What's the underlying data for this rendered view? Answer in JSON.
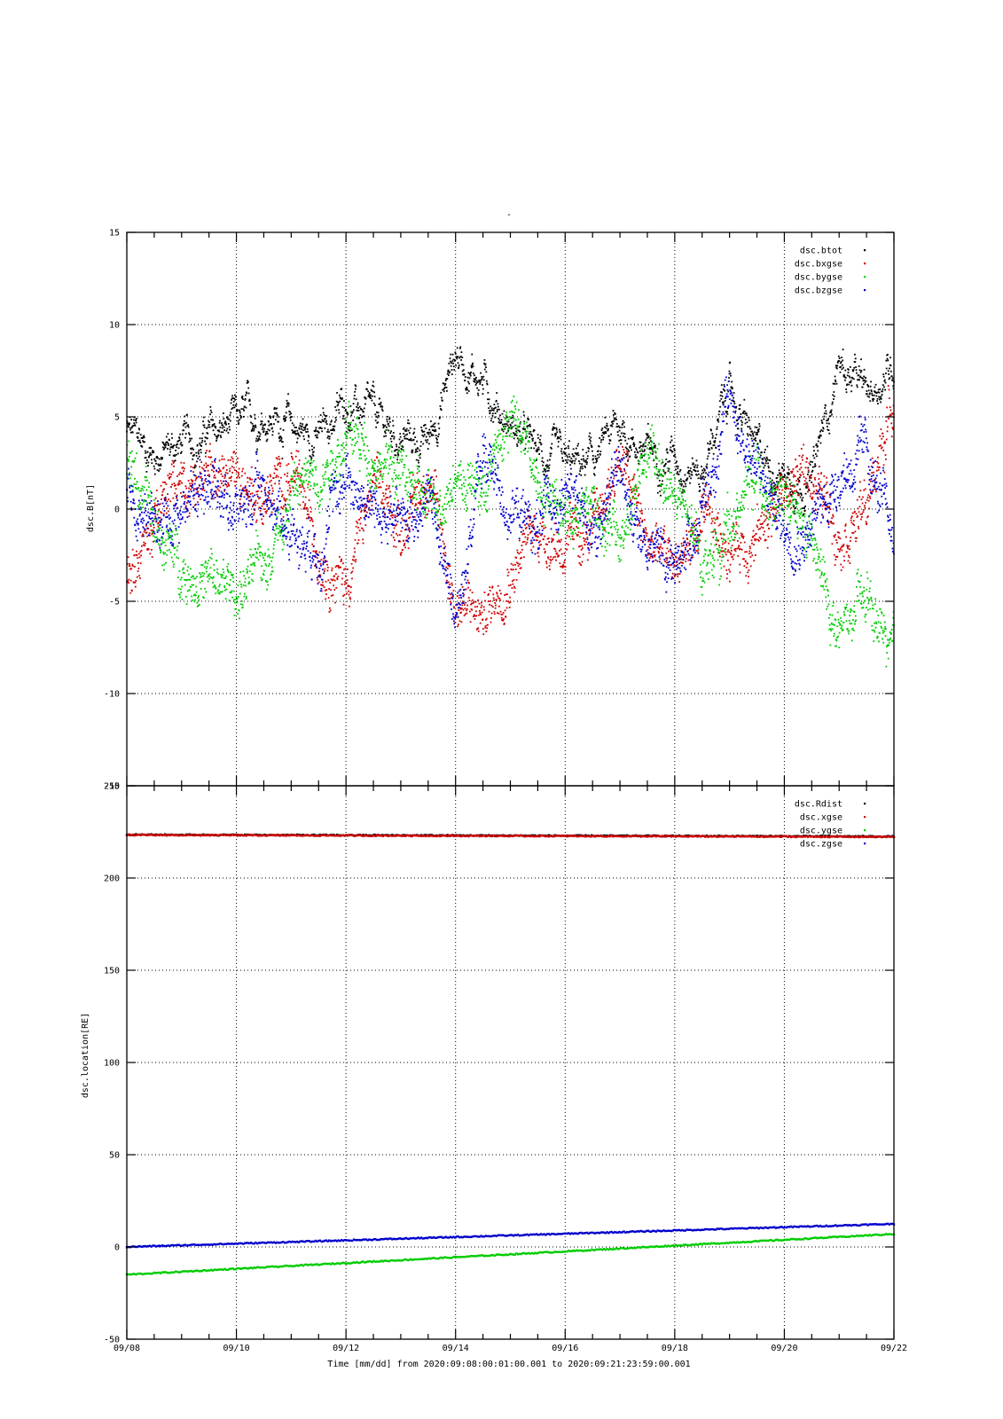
{
  "title": "-",
  "footer": "Time [mm/dd]  from 2020:09:08:00:01:00.001  to  2020:09:21:23:59:00.001",
  "x_tick_labels": [
    "09/08",
    "09/10",
    "09/12",
    "09/14",
    "09/16",
    "09/18",
    "09/20",
    "09/22"
  ],
  "chart_data": [
    {
      "type": "scatter",
      "ylabel": "dsc.B[nT]",
      "ylim": [
        -15,
        15
      ],
      "xlim": [
        0,
        14
      ],
      "x_unit": "days since 09/08",
      "yticks": [
        15,
        10,
        5,
        0,
        -5,
        -10,
        -15
      ],
      "grid": true,
      "legend_position": "top-right",
      "series": [
        {
          "name": "dsc.btot",
          "color": "#000000",
          "x": [
            0,
            0.5,
            1,
            1.5,
            2,
            2.5,
            3,
            3.5,
            4,
            4.5,
            5,
            5.5,
            6,
            6.5,
            7,
            7.5,
            8,
            8.5,
            9,
            9.5,
            10,
            10.5,
            11,
            11.5,
            12,
            12.5,
            13,
            13.5,
            14
          ],
          "values": [
            4.2,
            3,
            3.5,
            4,
            4.5,
            5.2,
            4.5,
            3.8,
            5.8,
            4.8,
            3.8,
            3.5,
            8.5,
            7,
            4.5,
            3,
            2,
            2.5,
            4.5,
            3,
            3,
            2,
            6.5,
            3,
            2,
            1.5,
            8,
            6,
            8
          ]
        },
        {
          "name": "dsc.bxgse",
          "color": "#d00000",
          "x": [
            0,
            0.5,
            1,
            1.5,
            2,
            2.5,
            3,
            3.5,
            4,
            4.5,
            5,
            5.5,
            6,
            6.5,
            7,
            7.5,
            8,
            8.5,
            9,
            9.5,
            10,
            10.5,
            11,
            11.5,
            12,
            12.5,
            13,
            13.5,
            14
          ],
          "values": [
            -3.5,
            -1,
            2,
            1.5,
            2,
            0.5,
            2,
            -2,
            -4,
            1,
            -1,
            2,
            -5,
            -6,
            -3,
            -1,
            -2,
            -1.5,
            3,
            -2,
            -3,
            -1,
            -2,
            -1.5,
            1,
            2,
            -1,
            0,
            6
          ]
        },
        {
          "name": "dsc.bygse",
          "color": "#00cc00",
          "x": [
            0,
            0.5,
            1,
            1.5,
            2,
            2.5,
            3,
            3.5,
            4,
            4.5,
            5,
            5.5,
            6,
            6.5,
            7,
            7.5,
            8,
            8.5,
            9,
            9.5,
            10,
            10.5,
            11,
            11.5,
            12,
            12.5,
            13,
            13.5,
            14
          ],
          "values": [
            3,
            -1,
            -3,
            -4,
            -4.5,
            -3,
            1,
            2,
            4,
            3,
            2,
            0,
            2,
            1,
            5,
            2,
            0,
            0.5,
            -2,
            3,
            1,
            -3,
            -1,
            2,
            0,
            -2,
            -7,
            -5,
            -8
          ]
        },
        {
          "name": "dsc.bzgse",
          "color": "#0000cc",
          "x": [
            0,
            0.5,
            1,
            1.5,
            2,
            2.5,
            3,
            3.5,
            4,
            4.5,
            5,
            5.5,
            6,
            6.5,
            7,
            7.5,
            8,
            8.5,
            9,
            9.5,
            10,
            10.5,
            11,
            11.5,
            12,
            12.5,
            13,
            13.5,
            14
          ],
          "values": [
            1,
            -1,
            0,
            2,
            0,
            1,
            -1,
            -2,
            2,
            0,
            -1,
            1,
            -6,
            3,
            0,
            -1,
            1,
            -1,
            2,
            -2,
            -3,
            0,
            6,
            2,
            -1,
            -1,
            2,
            3,
            -2
          ]
        }
      ]
    },
    {
      "type": "scatter",
      "ylabel": "dsc.location[RE]",
      "ylim": [
        -50,
        250
      ],
      "xlim": [
        0,
        14
      ],
      "x_unit": "days since 09/08",
      "yticks": [
        250,
        200,
        150,
        100,
        50,
        0,
        -50
      ],
      "grid": true,
      "legend_position": "top-right",
      "series": [
        {
          "name": "dsc.Rdist",
          "color": "#000000",
          "x": [
            0,
            14
          ],
          "values": [
            223.5,
            222.5
          ]
        },
        {
          "name": "dsc.xgse",
          "color": "#d00000",
          "x": [
            0,
            14
          ],
          "values": [
            223.3,
            222.3
          ]
        },
        {
          "name": "dsc.ygse",
          "color": "#00cc00",
          "x": [
            0,
            14
          ],
          "values": [
            -15,
            7
          ]
        },
        {
          "name": "dsc.zgse",
          "color": "#0000cc",
          "x": [
            0,
            14
          ],
          "values": [
            0,
            12.5
          ]
        }
      ]
    }
  ]
}
